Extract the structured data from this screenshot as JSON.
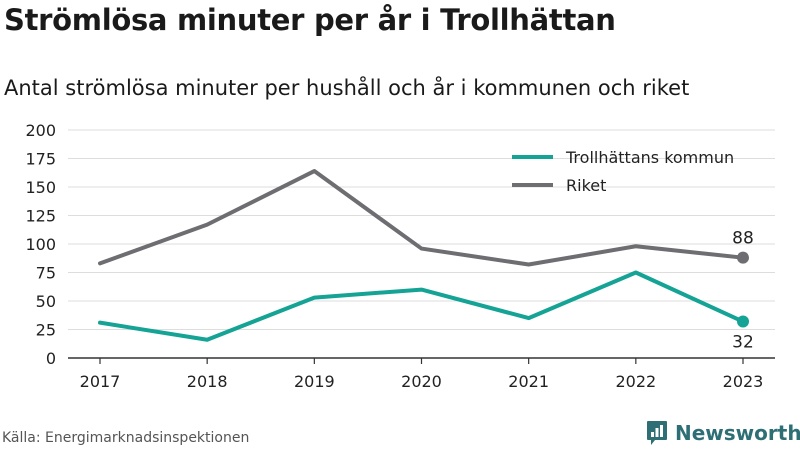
{
  "header": {
    "title": "Strömlösa minuter per år i Trollhättan",
    "subtitle": "Antal strömlösa minuter per hushåll och år i kommunen och riket"
  },
  "footer": {
    "source": "Källa: Energimarknadsinspektionen",
    "brand": "Newsworthy"
  },
  "colors": {
    "kommun": "#14a394",
    "riket": "#6d6d72",
    "grid": "#dddddd",
    "axis": "#333333",
    "brand": "#2e6f75"
  },
  "icons": {
    "brand": "bar-chart-icon"
  },
  "chart_data": {
    "type": "line",
    "x": [
      2017,
      2018,
      2019,
      2020,
      2021,
      2022,
      2023
    ],
    "xticks": [
      "2017",
      "2018",
      "2019",
      "2020",
      "2021",
      "2022",
      "2023"
    ],
    "yticks": [
      0,
      25,
      50,
      75,
      100,
      125,
      150,
      175,
      200
    ],
    "ylim": [
      0,
      200
    ],
    "grid": true,
    "legend_position": "top-right",
    "series": [
      {
        "name": "Trollhättans kommun",
        "color": "#14a394",
        "values": [
          31,
          16,
          53,
          60,
          35,
          75,
          32
        ],
        "end_label": "32"
      },
      {
        "name": "Riket",
        "color": "#6d6d72",
        "values": [
          83,
          117,
          164,
          96,
          82,
          98,
          88
        ],
        "end_label": "88"
      }
    ]
  }
}
